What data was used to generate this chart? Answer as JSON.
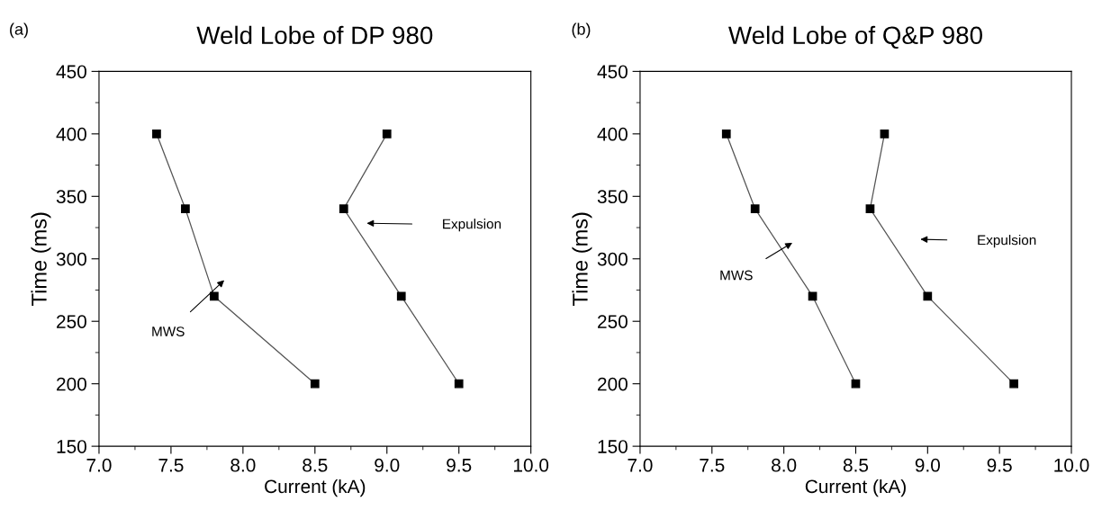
{
  "chart_data": [
    {
      "type": "line",
      "title": "Weld Lobe of DP 980",
      "xlabel": "Current (kA)",
      "ylabel": "Time (ms)",
      "xlim": [
        7.0,
        10.0
      ],
      "xticks": [
        {
          "value": 7.0,
          "label": "7.0"
        },
        {
          "value": 7.5,
          "label": "7.5"
        },
        {
          "value": 8.0,
          "label": "8.0"
        },
        {
          "value": 8.5,
          "label": "8.5"
        },
        {
          "value": 9.0,
          "label": "9.0"
        },
        {
          "value": 9.5,
          "label": "9.5"
        },
        {
          "value": 10.0,
          "label": "10.0"
        }
      ],
      "ylim": [
        150,
        450
      ],
      "yticks": [
        150,
        200,
        250,
        300,
        350,
        400,
        450
      ],
      "marker": "square",
      "grid": false,
      "legend": false,
      "series": [
        {
          "color": "#000000",
          "x": [
            7.4,
            7.6,
            7.8,
            8.5
          ],
          "values": [
            400,
            340,
            270,
            200
          ]
        },
        {
          "color": "#000000",
          "x": [
            9.0,
            8.7,
            9.1,
            9.5
          ],
          "values": [
            400,
            340,
            270,
            200
          ]
        }
      ],
      "annotations": [
        "(a)",
        "MWS",
        "Expulsion"
      ]
    },
    {
      "type": "line",
      "title": "Weld Lobe of Q&P 980",
      "xlabel": "Current (kA)",
      "ylabel": "Time (ms)",
      "xlim": [
        7.0,
        10.0
      ],
      "xticks": [
        {
          "value": 7.0,
          "label": "7.0"
        },
        {
          "value": 7.5,
          "label": "7.5"
        },
        {
          "value": 8.0,
          "label": "8.0"
        },
        {
          "value": 8.5,
          "label": "8.5"
        },
        {
          "value": 9.0,
          "label": "9.0"
        },
        {
          "value": 9.5,
          "label": "9.5"
        },
        {
          "value": 10.0,
          "label": "10.0"
        }
      ],
      "ylim": [
        150,
        450
      ],
      "yticks": [
        150,
        200,
        250,
        300,
        350,
        400,
        450
      ],
      "marker": "square",
      "grid": false,
      "legend": false,
      "series": [
        {
          "color": "#000000",
          "x": [
            7.6,
            7.8,
            8.2,
            8.5
          ],
          "values": [
            400,
            340,
            270,
            200
          ]
        },
        {
          "color": "#000000",
          "x": [
            8.7,
            8.6,
            9.0,
            9.6
          ],
          "values": [
            400,
            340,
            270,
            200
          ]
        }
      ],
      "annotations": [
        "(b)",
        "MWS",
        "Expulsion"
      ]
    }
  ]
}
